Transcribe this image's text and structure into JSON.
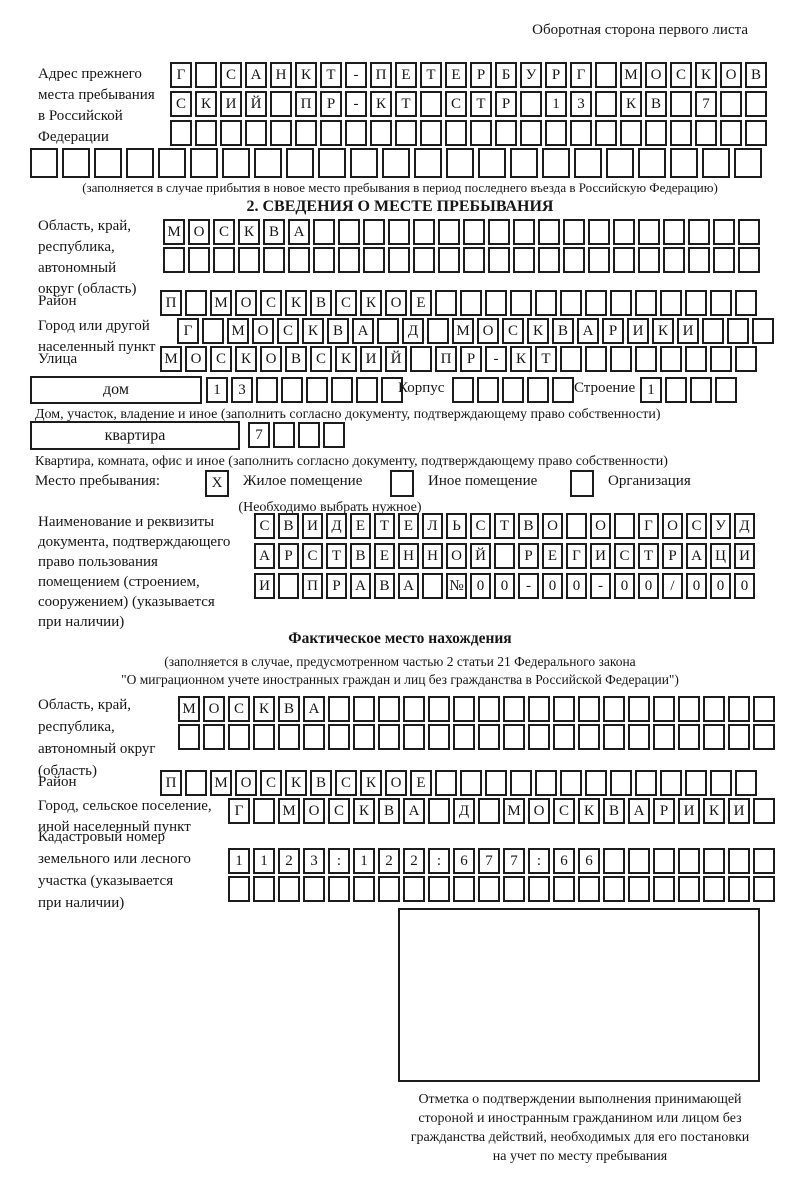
{
  "page": {
    "back_note": "Оборотная сторона первого листа"
  },
  "prev_address": {
    "label": "Адрес прежнего\nместа пребывания\nв Российской\nФедерации",
    "row1": "Г САНКТ-ПЕТЕРБУРГ МОСКОВ",
    "row2": "СКИЙ ПР-КТ СТР 13 КВ 7  ",
    "row3": "                        ",
    "row4": "                       ",
    "note": "(заполняется в случае прибытия в новое место пребывания в период последнего въезда в Российскую Федерацию)"
  },
  "section2": {
    "title": "2. СВЕДЕНИЯ О МЕСТЕ ПРЕБЫВАНИЯ",
    "oblast": {
      "label": "Область, край,\nреспублика,\nавтономный\nокруг (область)",
      "row1": "МОСКВА                  ",
      "row2": "                        "
    },
    "raion": {
      "label": "Район",
      "row": "П МОСКВСКОЕ             "
    },
    "gorod": {
      "label": "Город или другой\nнаселенный пункт",
      "row": "Г МОСКВА Д МОСКВАРИКИ   "
    },
    "ulitsa": {
      "label": "Улица",
      "row": "МОСКОВСКИЙ ПР-КТ        "
    },
    "dom": {
      "box_label": "дом",
      "cells": "13      ",
      "korpus_label": "Корпус",
      "korpus_cells": "     ",
      "stroenie_label": "Строение",
      "stroenie_cells": "1   ",
      "note": "Дом, участок, владение и иное (заполнить согласно документу, подтверждающему право собственности)"
    },
    "kvartira": {
      "box_label": "квартира",
      "cells": "7   ",
      "note": "Квартира, комната, офис и иное (заполнить согласно документу, подтверждающему право собственности)"
    },
    "stay_type": {
      "label": "Место пребывания:",
      "options": [
        {
          "mark": "X",
          "label": "Жилое помещение"
        },
        {
          "mark": "",
          "label": "Иное помещение"
        },
        {
          "mark": "",
          "label": "Организация"
        }
      ],
      "note": "(Необходимо выбрать нужное)"
    },
    "document": {
      "label": "Наименование и реквизиты\nдокумента, подтверждающего\nправо пользования\nпомещением (строением,\nсооружением) (указывается\nпри наличии)",
      "row1": "СВИДЕТЕЛЬСТВО О ГОСУД",
      "row2": "АРСТВЕННОЙ РЕГИСТРАЦИ",
      "row3": "И ПРАВА №00-00-00/000"
    }
  },
  "actual_location": {
    "title": "Фактическое место нахождения",
    "note1": "(заполняется в случае, предусмотренном частью 2 статьи 21 Федерального закона",
    "note2": "\"О миграционном учете иностранных граждан и лиц без гражданства в Российской Федерации\")",
    "oblast": {
      "label": "Область, край,\nреспублика,\nавтономный округ\n(область)",
      "row1": "МОСКВА                  ",
      "row2": "                        "
    },
    "raion": {
      "label": "Район",
      "row": "П МОСКВСКОЕ             "
    },
    "gorod": {
      "label": "Город, сельское поселение,\nиной населенный пункт",
      "row": "Г МОСКВА Д МОСКВАРИКИ "
    },
    "cadastre": {
      "label": "Кадастровый номер\nземельного или лесного\nучастка (указывается\nпри наличии)",
      "row1": "1123:122:677:66       ",
      "row2": "                      "
    }
  },
  "stamp": {
    "note": "Отметка о подтверждении выполнения принимающей\nстороной и иностранным гражданином или лицом без\nгражданства действий, необходимых для его постановки\nна учет по месту пребывания"
  }
}
